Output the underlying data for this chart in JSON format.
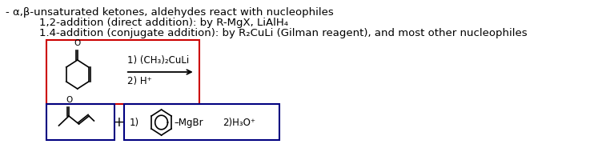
{
  "bg_color": "#ffffff",
  "text_color": "#000000",
  "line1": "- α,β-unsaturated ketones, aldehydes react with nucleophiles",
  "line2": "1,2-addition (direct addition): by R-MgX, LiAlH₄",
  "line3": "1.4-addition (conjugate addition): by R₂CuLi (Gilman reagent), and most other nucleophiles",
  "box1_color": "#cc0000",
  "box2_color": "#000080",
  "arrow_label1": "1) (CH₃)₂CuLi",
  "arrow_label2": "2) H⁺",
  "reagent_label": "1)",
  "mgbr_label": "–MgBr",
  "h3o_label": "2)H₃O⁺",
  "plus_label": "+",
  "font_size_main": 9.5,
  "font_size_labels": 8.5
}
